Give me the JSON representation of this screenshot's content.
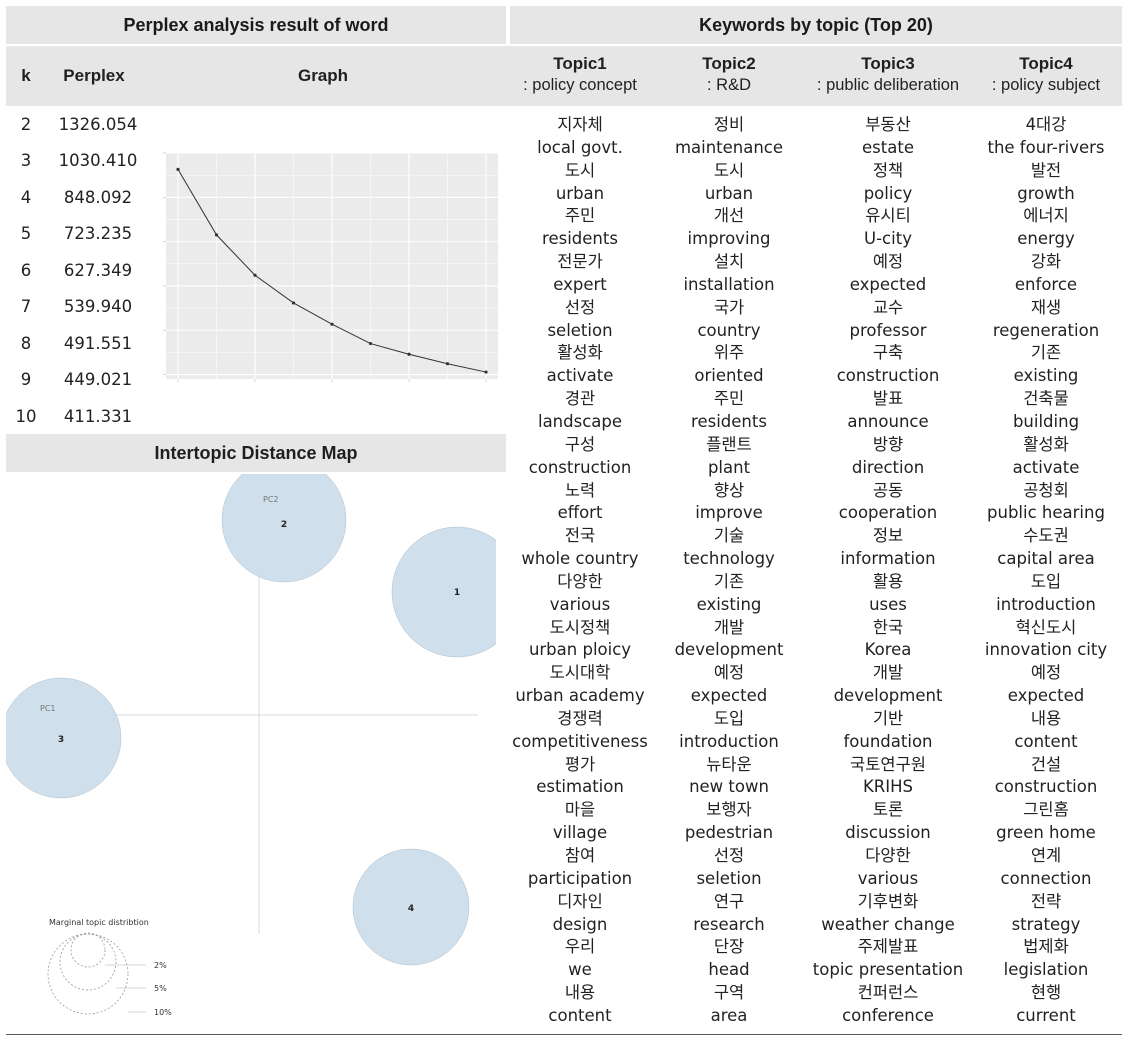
{
  "left_header": "Perplex analysis result of word",
  "right_header": "Keywords by topic (Top 20)",
  "col_k": "k",
  "col_perplex": "Perplex",
  "col_graph": "Graph",
  "perplex_rows": [
    {
      "k": "2",
      "perplex": "1326.054"
    },
    {
      "k": "3",
      "perplex": "1030.410"
    },
    {
      "k": "4",
      "perplex": "848.092"
    },
    {
      "k": "5",
      "perplex": "723.235"
    },
    {
      "k": "6",
      "perplex": "627.349"
    },
    {
      "k": "7",
      "perplex": "539.940"
    },
    {
      "k": "8",
      "perplex": "491.551"
    },
    {
      "k": "9",
      "perplex": "449.021"
    },
    {
      "k": "10",
      "perplex": "411.331"
    }
  ],
  "chart_data": {
    "type": "line",
    "x": [
      2,
      3,
      4,
      5,
      6,
      7,
      8,
      9,
      10
    ],
    "values": [
      1326.054,
      1030.41,
      848.092,
      723.235,
      627.349,
      539.94,
      491.551,
      449.021,
      411.331
    ],
    "xlim": [
      2,
      10
    ],
    "ylim": [
      380,
      1400
    ],
    "grid": true,
    "line_color": "#333333",
    "panel_bg": "#ebebeb"
  },
  "distance_map": {
    "title": "Intertopic Distance Map",
    "pc1_label": "PC1",
    "pc2_label": "PC2",
    "circle_labels": [
      "1",
      "2",
      "3",
      "4"
    ],
    "circle_color": "#cfe0ec",
    "legend_title": "Marginal topic distribtion",
    "legend_values": [
      "2%",
      "5%",
      "10%"
    ]
  },
  "topics": [
    {
      "name": "Topic1",
      "subtitle": ": policy concept",
      "words": [
        "지자체",
        "local govt.",
        "도시",
        "urban",
        "주민",
        "residents",
        "전문가",
        "expert",
        "선정",
        "seletion",
        "활성화",
        "activate",
        "경관",
        "landscape",
        "구성",
        "construction",
        "노력",
        "effort",
        "전국",
        "whole country",
        "다양한",
        "various",
        "도시정책",
        "urban ploicy",
        "도시대학",
        "urban academy",
        "경쟁력",
        "competitiveness",
        "평가",
        "estimation",
        "마을",
        "village",
        "참여",
        "participation",
        "디자인",
        "design",
        "우리",
        "we",
        "내용",
        "content"
      ]
    },
    {
      "name": "Topic2",
      "subtitle": ": R&D",
      "words": [
        "정비",
        "maintenance",
        "도시",
        "urban",
        "개선",
        "improving",
        "설치",
        "installation",
        "국가",
        "country",
        "위주",
        "oriented",
        "주민",
        "residents",
        "플랜트",
        "plant",
        "향상",
        "improve",
        "기술",
        "technology",
        "기존",
        "existing",
        "개발",
        "development",
        "예정",
        "expected",
        "도입",
        "introduction",
        "뉴타운",
        "new town",
        "보행자",
        "pedestrian",
        "선정",
        "seletion",
        "연구",
        "research",
        "단장",
        "head",
        "구역",
        "area"
      ]
    },
    {
      "name": "Topic3",
      "subtitle": ": public deliberation",
      "words": [
        "부동산",
        "estate",
        "정책",
        "policy",
        "유시티",
        "U-city",
        "예정",
        "expected",
        "교수",
        "professor",
        "구축",
        "construction",
        "발표",
        "announce",
        "방향",
        "direction",
        "공동",
        "cooperation",
        "정보",
        "information",
        "활용",
        "uses",
        "한국",
        "Korea",
        "개발",
        "development",
        "기반",
        "foundation",
        "국토연구원",
        "KRIHS",
        "토론",
        "discussion",
        "다양한",
        "various",
        "기후변화",
        "weather change",
        "주제발표",
        "topic presentation",
        "컨퍼런스",
        "conference"
      ]
    },
    {
      "name": "Topic4",
      "subtitle": ": policy subject",
      "words": [
        "4대강",
        "the four-rivers",
        "발전",
        "growth",
        "에너지",
        "energy",
        "강화",
        "enforce",
        "재생",
        "regeneration",
        "기존",
        "existing",
        "건축물",
        "building",
        "활성화",
        "activate",
        "공청회",
        "public hearing",
        "수도권",
        "capital area",
        "도입",
        "introduction",
        "혁신도시",
        "innovation city",
        "예정",
        "expected",
        "내용",
        "content",
        "건설",
        "construction",
        "그린홈",
        "green home",
        "연계",
        "connection",
        "전략",
        "strategy",
        "법제화",
        "legislation",
        "현행",
        "current"
      ]
    }
  ]
}
